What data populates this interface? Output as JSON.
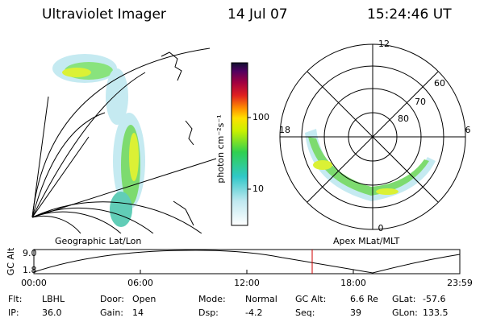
{
  "header": {
    "title": "Ultraviolet Imager",
    "date": "14 Jul 07",
    "time": "15:24:46 UT"
  },
  "colorbar": {
    "label": "photon cm⁻²s⁻¹",
    "ticks": [
      "100",
      "10"
    ]
  },
  "left_panel": {
    "label": "Geographic Lat/Lon"
  },
  "right_panel": {
    "label": "Apex MLat/MLT",
    "mlt_labels": [
      "12",
      "6",
      "0",
      "18"
    ],
    "lat_labels": [
      "60",
      "70",
      "80"
    ]
  },
  "altitude_plot": {
    "ylabel": "GC Alt",
    "yticks": [
      "9.0",
      "1.8"
    ],
    "xticks": [
      "00:00",
      "06:00",
      "12:00",
      "18:00",
      "23:59"
    ]
  },
  "info": {
    "rows": [
      [
        [
          "Flt:",
          "LBHL"
        ],
        [
          "Door:",
          "Open"
        ],
        [
          "Mode:",
          "Normal"
        ],
        [
          "GC Alt:",
          "6.6 Re"
        ],
        [
          "GLat:",
          "-57.6"
        ]
      ],
      [
        [
          "IP:",
          "36.0"
        ],
        [
          "Gain:",
          "14"
        ],
        [
          "Dsp:",
          "-4.2"
        ],
        [
          "Seq:",
          "39"
        ],
        [
          "GLon:",
          "133.5"
        ]
      ]
    ]
  }
}
